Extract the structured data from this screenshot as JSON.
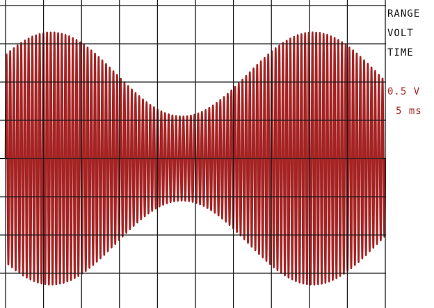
{
  "labels": {
    "range": "RANGE",
    "volt": "VOLT",
    "time": "TIME",
    "volt_value": "0.5 V",
    "time_value": "5 ms"
  },
  "colors": {
    "trace": "#a52323",
    "grid": "#1a1a1a",
    "label_black": "#111111",
    "label_red": "#a52323",
    "background": "#ffffff"
  },
  "chart_data": {
    "type": "line",
    "title": "",
    "xlabel": "",
    "ylabel": "",
    "x_unit": "ms",
    "y_unit": "V",
    "volts_per_div": 0.5,
    "ms_per_div": 5,
    "divisions": {
      "x": 10,
      "y": 8
    },
    "xlim": [
      0,
      50
    ],
    "ylim": [
      -2.0,
      2.0
    ],
    "grid": true,
    "series": [
      {
        "signal": "amplitude-modulated sine",
        "carrier_cycles_visible": 103,
        "envelope_cycles_visible": 1.45,
        "envelope_max_V": 1.65,
        "envelope_min_V": 0.55,
        "envelope_peaks_ms": [
          6,
          40
        ],
        "envelope_trough_ms": 22,
        "dc_offset_V": 0.0
      }
    ]
  }
}
